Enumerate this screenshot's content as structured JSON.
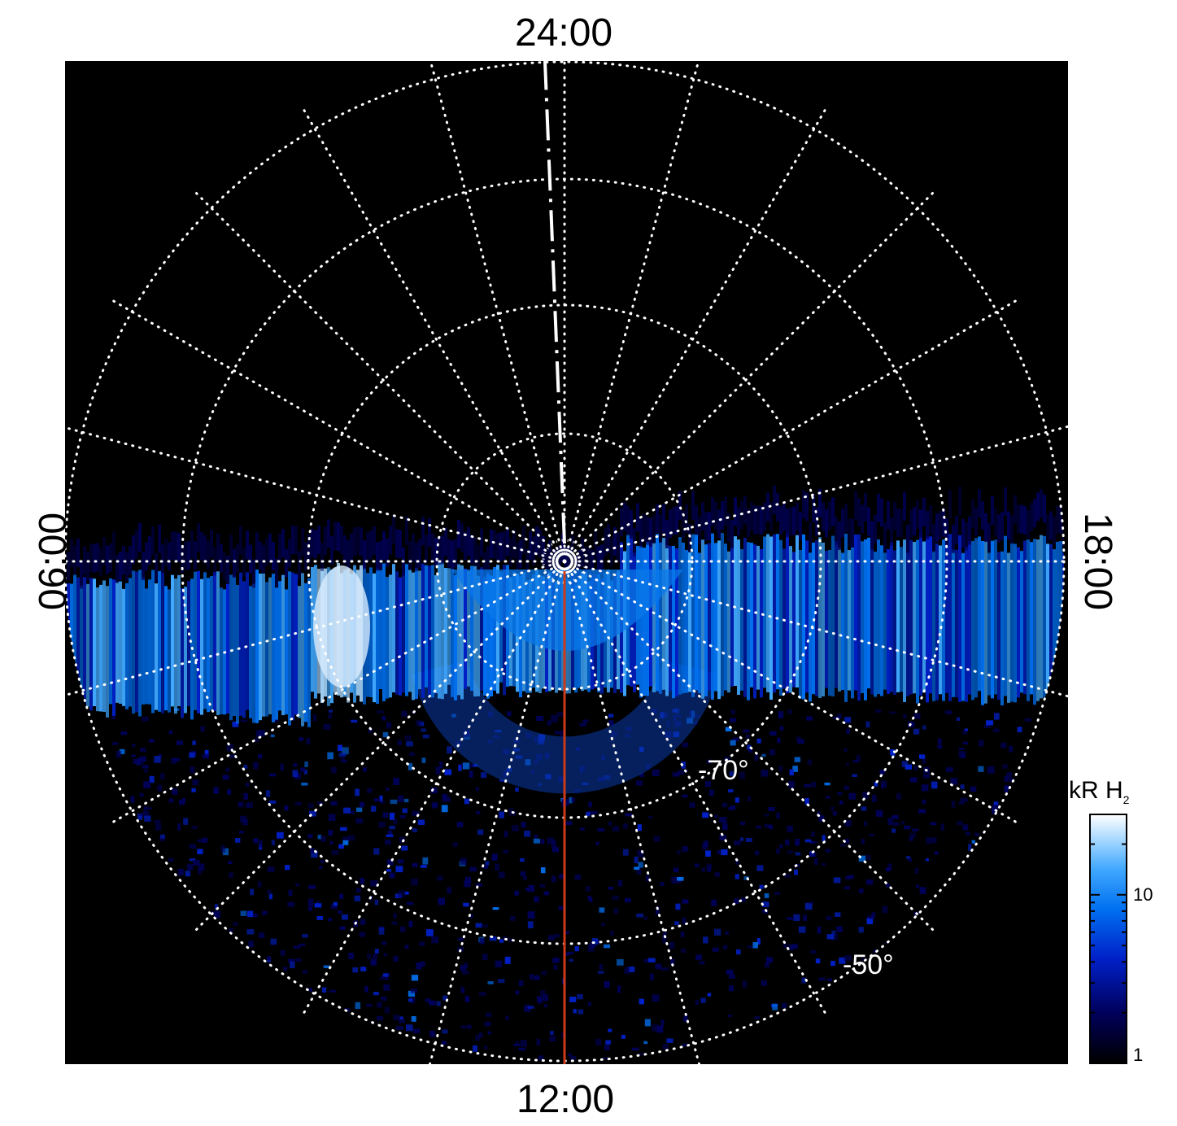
{
  "chart_data": {
    "type": "heatmap",
    "projection": "polar (south pole, local time)",
    "local_time_labels": {
      "top": "24:00",
      "bottom": "12:00",
      "left": "06:00",
      "right": "18:00"
    },
    "latitude_labels": [
      "-70°",
      "-50°"
    ],
    "colorbar": {
      "label": "kR H",
      "label_subscript": "2",
      "scale": "log",
      "range": [
        1,
        30
      ],
      "ticks": [
        {
          "value": 1,
          "label": "1"
        },
        {
          "value": 10,
          "label": "10"
        }
      ],
      "colors": [
        "#000000",
        "#00005a",
        "#0020c8",
        "#0070f0",
        "#40a8ff",
        "#a8d8ff",
        "#ffffff"
      ]
    },
    "grid": true,
    "background": "#000000",
    "meridian_line_color": "#cc3a1a",
    "dashed_meridian_color": "#ffffff"
  }
}
